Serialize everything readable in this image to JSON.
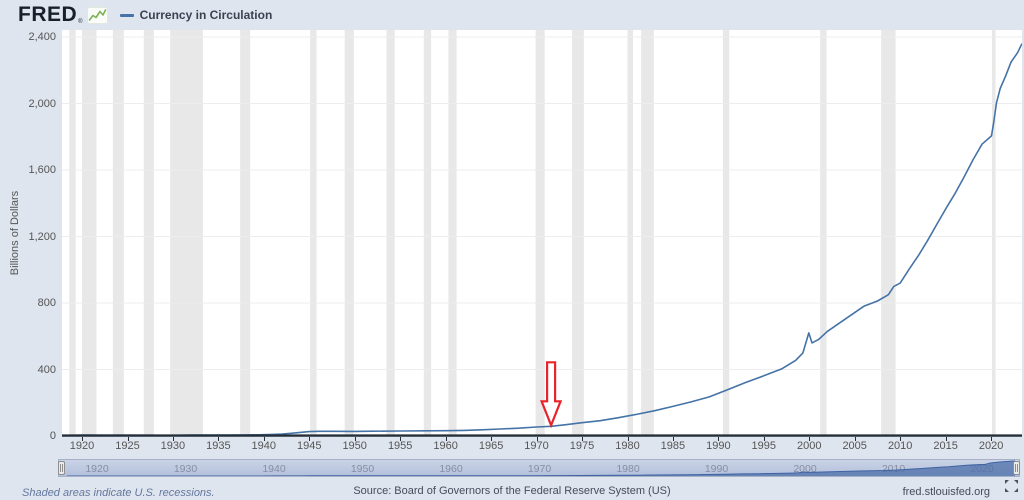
{
  "header": {
    "logo_text": "FRED",
    "registered_mark": "®",
    "legend_label": "Currency in Circulation"
  },
  "chart_data": {
    "type": "line",
    "title": "Currency in Circulation",
    "ylabel": "Billions of Dollars",
    "xlabel": "",
    "x_range": [
      1917.8,
      2023.4
    ],
    "y_range": [
      0,
      2400
    ],
    "grid": true,
    "legend_position": "top-left",
    "y_ticks": {
      "values": [
        0,
        400,
        800,
        1200,
        1600,
        2000,
        2400
      ],
      "labels": [
        "0",
        "400",
        "800",
        "1,200",
        "1,600",
        "2,000",
        "2,400"
      ]
    },
    "x_ticks": [
      1920,
      1925,
      1930,
      1935,
      1940,
      1945,
      1950,
      1955,
      1960,
      1965,
      1970,
      1975,
      1980,
      1985,
      1990,
      1995,
      2000,
      2005,
      2010,
      2015,
      2020
    ],
    "series": [
      {
        "name": "Currency in Circulation",
        "units": "Billions of Dollars",
        "color": "#4573a7",
        "points": [
          [
            1917.8,
            4.0
          ],
          [
            1918.5,
            4.5
          ],
          [
            1919.5,
            5.0
          ],
          [
            1920.5,
            5.4
          ],
          [
            1921.5,
            4.6
          ],
          [
            1923,
            4.9
          ],
          [
            1925,
            4.8
          ],
          [
            1927,
            4.7
          ],
          [
            1929,
            4.5
          ],
          [
            1930.5,
            4.4
          ],
          [
            1932,
            5.5
          ],
          [
            1933.2,
            5.8
          ],
          [
            1934.5,
            5.4
          ],
          [
            1936,
            6.2
          ],
          [
            1938,
            6.5
          ],
          [
            1939.5,
            7.2
          ],
          [
            1941,
            9.6
          ],
          [
            1942,
            12.3
          ],
          [
            1943,
            16.5
          ],
          [
            1944,
            21.8
          ],
          [
            1945,
            26.5
          ],
          [
            1946,
            28.5
          ],
          [
            1947.5,
            28.2
          ],
          [
            1950,
            27.4
          ],
          [
            1952,
            29.0
          ],
          [
            1955,
            30.2
          ],
          [
            1958,
            31.3
          ],
          [
            1960,
            32.1
          ],
          [
            1962,
            33.9
          ],
          [
            1964,
            37.0
          ],
          [
            1966,
            42.1
          ],
          [
            1968,
            47.0
          ],
          [
            1970,
            54.4
          ],
          [
            1971.6,
            58.5
          ],
          [
            1973,
            67.0
          ],
          [
            1975,
            80.0
          ],
          [
            1977,
            92.0
          ],
          [
            1979,
            110.0
          ],
          [
            1981,
            130.0
          ],
          [
            1983,
            152.0
          ],
          [
            1985,
            178.0
          ],
          [
            1987,
            205.0
          ],
          [
            1989,
            235.0
          ],
          [
            1991,
            278.0
          ],
          [
            1993,
            322.0
          ],
          [
            1995,
            362.0
          ],
          [
            1997,
            405.0
          ],
          [
            1998.5,
            455.0
          ],
          [
            1999.3,
            500.0
          ],
          [
            1999.95,
            620.0
          ],
          [
            2000.3,
            560.0
          ],
          [
            2001,
            580.0
          ],
          [
            2002,
            630.0
          ],
          [
            2004,
            705.0
          ],
          [
            2006,
            780.0
          ],
          [
            2007.5,
            812.0
          ],
          [
            2008.7,
            850.0
          ],
          [
            2009.3,
            900.0
          ],
          [
            2010,
            920.0
          ],
          [
            2011,
            1005.0
          ],
          [
            2012,
            1085.0
          ],
          [
            2013,
            1175.0
          ],
          [
            2014,
            1270.0
          ],
          [
            2015,
            1365.0
          ],
          [
            2016,
            1455.0
          ],
          [
            2017,
            1555.0
          ],
          [
            2018,
            1660.0
          ],
          [
            2019,
            1755.0
          ],
          [
            2020.05,
            1805.0
          ],
          [
            2020.3,
            1890.0
          ],
          [
            2020.6,
            2005.0
          ],
          [
            2021,
            2090.0
          ],
          [
            2021.6,
            2165.0
          ],
          [
            2022.2,
            2250.0
          ],
          [
            2022.9,
            2305.0
          ],
          [
            2023.4,
            2360.0
          ]
        ]
      }
    ],
    "recessions": [
      [
        1918.6,
        1919.3
      ],
      [
        1920.0,
        1921.6
      ],
      [
        1923.4,
        1924.6
      ],
      [
        1926.8,
        1927.9
      ],
      [
        1929.7,
        1933.3
      ],
      [
        1937.4,
        1938.5
      ],
      [
        1945.1,
        1945.8
      ],
      [
        1948.9,
        1949.9
      ],
      [
        1953.5,
        1954.4
      ],
      [
        1957.6,
        1958.4
      ],
      [
        1960.3,
        1961.2
      ],
      [
        1969.9,
        1970.9
      ],
      [
        1973.9,
        1975.2
      ],
      [
        1980.0,
        1980.6
      ],
      [
        1981.5,
        1982.9
      ],
      [
        1990.5,
        1991.2
      ],
      [
        2001.2,
        2001.9
      ],
      [
        2007.9,
        2009.5
      ],
      [
        2020.1,
        2020.5
      ]
    ],
    "annotation": {
      "type": "arrow-down",
      "x_year": 1971.6,
      "color": "#e8242b"
    }
  },
  "navigator": {
    "tick_years": [
      1920,
      1930,
      1940,
      1950,
      1960,
      1970,
      1980,
      1990,
      2000,
      2010,
      2020
    ]
  },
  "footer": {
    "note": "Shaded areas indicate U.S. recessions.",
    "source": "Source: Board of Governors of the Federal Reserve System (US)",
    "site": "fred.stlouisfed.org"
  },
  "colors": {
    "page_background": "#dfe5ee",
    "plot_background": "#ffffff",
    "recession_band": "#e8e8e8",
    "gridline": "#ededed",
    "axis_line": "#242e39",
    "line": "#4573a7",
    "annotation_red": "#e8242b",
    "logo_green": "#7eb254"
  }
}
